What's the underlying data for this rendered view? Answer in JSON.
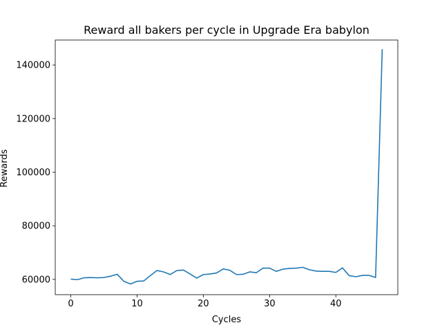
{
  "chart_data": {
    "type": "line",
    "title": "Reward all bakers per cycle in Upgrade Era babylon",
    "xlabel": "Cycles",
    "ylabel": "Rewards",
    "xlim": [
      -2.35,
      49.35
    ],
    "ylim": [
      54300,
      149300
    ],
    "xticks": [
      0,
      10,
      20,
      30,
      40
    ],
    "yticks": [
      60000,
      80000,
      100000,
      120000,
      140000
    ],
    "xtick_labels": [
      "0",
      "10",
      "20",
      "30",
      "40"
    ],
    "ytick_labels": [
      "60000",
      "80000",
      "100000",
      "120000",
      "140000"
    ],
    "grid": false,
    "line_color": "#1f77b4",
    "series": [
      {
        "x": [
          0,
          1,
          2,
          3,
          4,
          5,
          6,
          7,
          8,
          9,
          10,
          11,
          12,
          13,
          14,
          15,
          16,
          17,
          18,
          19,
          20,
          21,
          22,
          23,
          24,
          25,
          26,
          27,
          28,
          29,
          30,
          31,
          32,
          33,
          34,
          35,
          36,
          37,
          38,
          39,
          40,
          41,
          42,
          43,
          44,
          45,
          46,
          47
        ],
        "values": [
          60100,
          59900,
          60600,
          60700,
          60600,
          60700,
          61200,
          61900,
          59300,
          58300,
          59300,
          59400,
          61400,
          63300,
          62800,
          61800,
          63300,
          63500,
          62000,
          60500,
          61800,
          62000,
          62400,
          63900,
          63400,
          61800,
          61900,
          62800,
          62500,
          64200,
          64200,
          63000,
          63800,
          64100,
          64200,
          64500,
          63600,
          63100,
          63000,
          63000,
          62600,
          64300,
          61400,
          61000,
          61500,
          61500,
          60700,
          145900
        ]
      }
    ]
  }
}
